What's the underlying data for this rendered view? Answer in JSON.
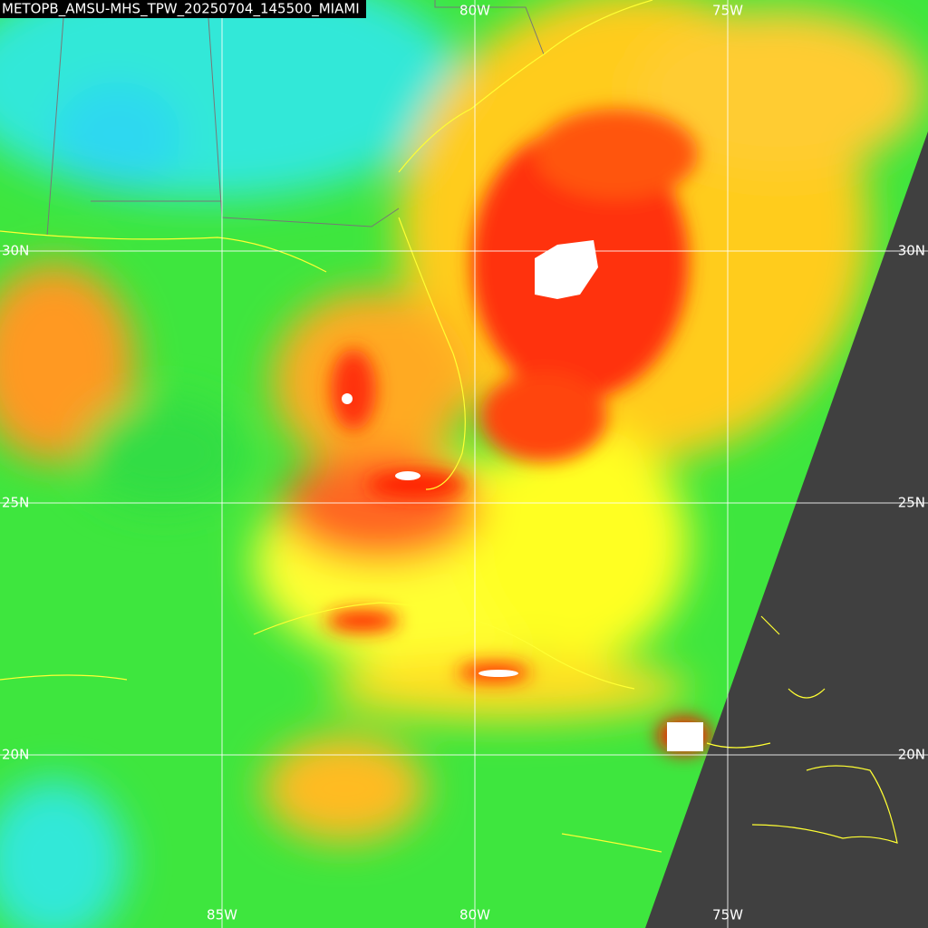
{
  "title": "METOPB_AMSU-MHS_TPW_20250704_145500_MIAMI",
  "graticule": {
    "top": [
      "80W",
      "75W"
    ],
    "bottom": [
      "85W",
      "80W",
      "75W"
    ],
    "left": [
      "30N",
      "25N",
      "20N"
    ],
    "right": [
      "30N",
      "25N",
      "20N"
    ]
  }
}
